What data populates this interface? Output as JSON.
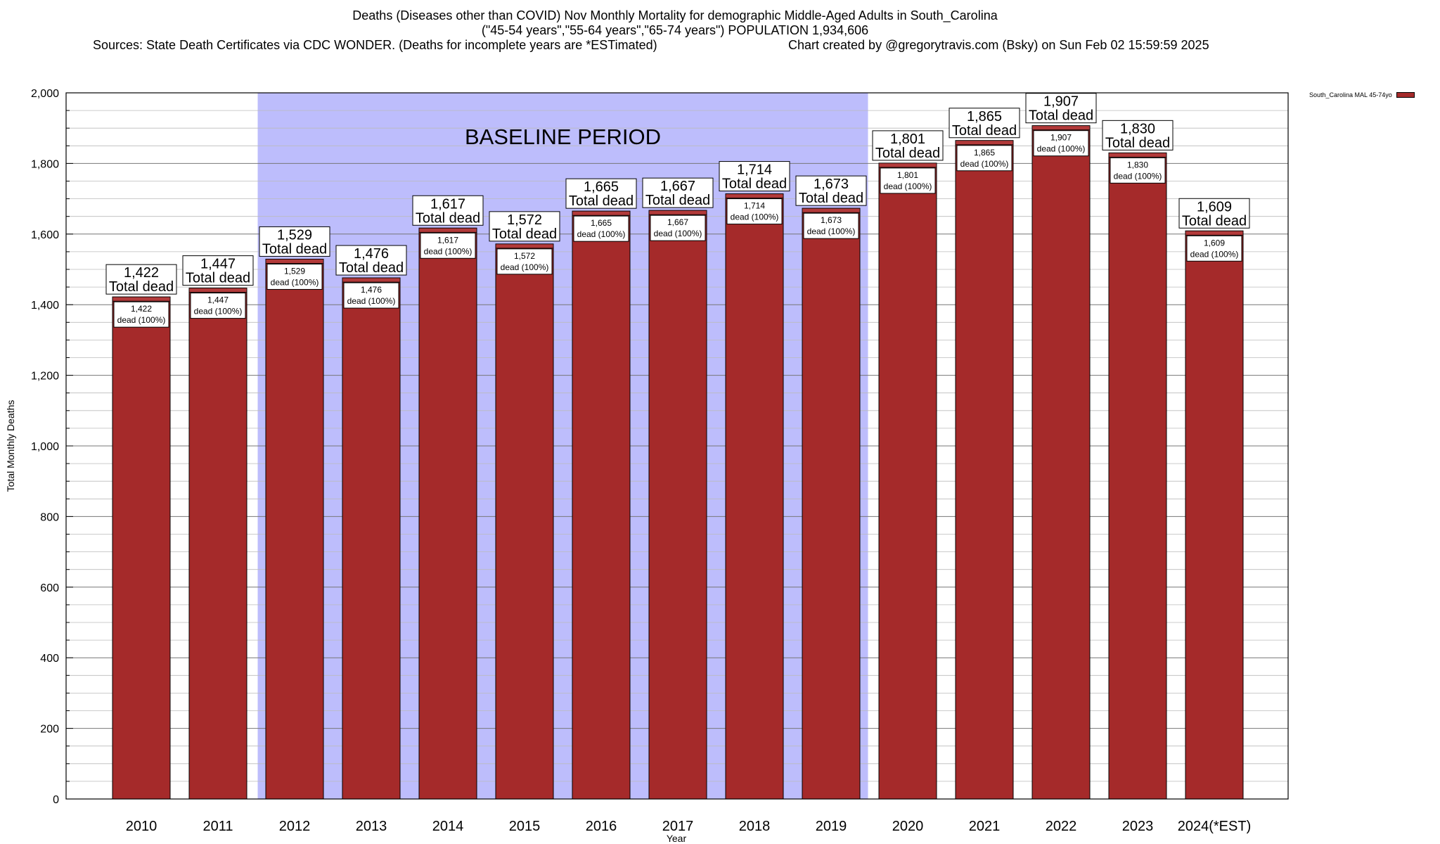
{
  "header": {
    "title_line1": "Deaths (Diseases other than COVID) Nov Monthly Mortality for demographic Middle-Aged Adults in South_Carolina",
    "title_line2": "(\"45-54 years\",\"55-64 years\",\"65-74 years\") POPULATION 1,934,606",
    "sources": "Sources: State Death Certificates via CDC WONDER. (Deaths for incomplete years are *ESTimated)",
    "credit": "Chart created by @gregorytravis.com (Bsky) on Sun Feb 02 15:59:59 2025"
  },
  "legend": {
    "label": "South_Carolina MAL 45-74yo"
  },
  "chart_data": {
    "type": "bar",
    "title": "Deaths (Diseases other than COVID) Nov Monthly Mortality for demographic Middle-Aged Adults in South_Carolina",
    "xlabel": "Year",
    "ylabel": "Total Monthly Deaths",
    "ylim": [
      0,
      2000
    ],
    "yticks": [
      0,
      200,
      400,
      600,
      800,
      1000,
      1200,
      1400,
      1600,
      1800,
      2000
    ],
    "ytick_labels": [
      "0",
      "200",
      "400",
      "600",
      "800",
      "1,000",
      "1,200",
      "1,400",
      "1,600",
      "1,800",
      "2,000"
    ],
    "grid": true,
    "categories": [
      "2010",
      "2011",
      "2012",
      "2013",
      "2014",
      "2015",
      "2016",
      "2017",
      "2018",
      "2019",
      "2020",
      "2021",
      "2022",
      "2023",
      "2024(*EST)"
    ],
    "values": [
      1422,
      1447,
      1529,
      1476,
      1617,
      1572,
      1665,
      1667,
      1714,
      1673,
      1801,
      1865,
      1907,
      1830,
      1609
    ],
    "value_labels": [
      "1,422",
      "1,447",
      "1,529",
      "1,476",
      "1,617",
      "1,572",
      "1,665",
      "1,667",
      "1,714",
      "1,673",
      "1,801",
      "1,865",
      "1,907",
      "1,830",
      "1,609"
    ],
    "total_label": "Total dead",
    "inner_label": "dead (100%)",
    "baseline": {
      "label": "BASELINE PERIOD",
      "start": "2012",
      "end": "2019",
      "color": "#bdbdfc"
    },
    "bar_color": "#a52a2a",
    "cap_color": "#b23a3a",
    "legend_position": "top-right"
  }
}
